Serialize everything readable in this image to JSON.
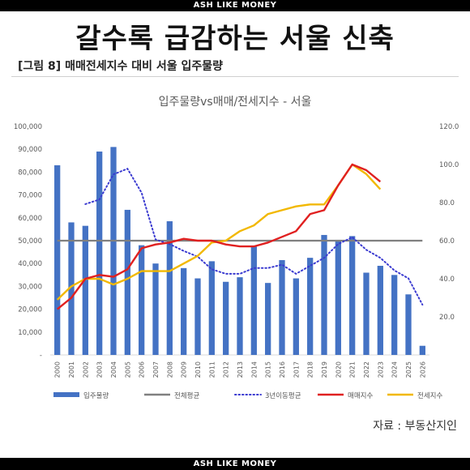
{
  "top_bar": "ASH LIKE MONEY",
  "bottom_bar": "ASH LIKE MONEY",
  "headline": "갈수록 급감하는 서울 신축",
  "subtitle_tag": "[그림 8]",
  "subtitle": "매매전세지수 대비 서울 입주물량",
  "source": "자료 : 부동산지인",
  "chart_data": {
    "type": "bar",
    "title": "입주물량vs매매/전세지수 - 서울",
    "categories": [
      "2000",
      "2001",
      "2002",
      "2003",
      "2004",
      "2005",
      "2006",
      "2007",
      "2008",
      "2009",
      "2010",
      "2011",
      "2012",
      "2013",
      "2014",
      "2015",
      "2016",
      "2017",
      "2018",
      "2019",
      "2020",
      "2021",
      "2022",
      "2023",
      "2024",
      "2025",
      "2026"
    ],
    "y_left": {
      "min": 0,
      "max": 100000,
      "ticks": [
        "-",
        "10,000",
        "20,000",
        "30,000",
        "40,000",
        "50,000",
        "60,000",
        "70,000",
        "80,000",
        "90,000",
        "100,000"
      ]
    },
    "y_right": {
      "min": 0,
      "max": 120,
      "ticks": [
        "20.0",
        "40.0",
        "60.0",
        "80.0",
        "100.0",
        "120.0"
      ]
    },
    "series": [
      {
        "name": "입주물량",
        "type": "bar",
        "axis": "left",
        "color": "#4472c4",
        "values": [
          83000,
          58000,
          56500,
          89000,
          91000,
          63500,
          48000,
          40000,
          58500,
          38000,
          33500,
          41000,
          32000,
          34000,
          47500,
          31500,
          41500,
          33500,
          42500,
          52500,
          50000,
          52000,
          36000,
          39000,
          35000,
          26500,
          4000
        ]
      },
      {
        "name": "전체평균",
        "type": "line",
        "axis": "left",
        "color": "#808080",
        "values": [
          50000,
          50000,
          50000,
          50000,
          50000,
          50000,
          50000,
          50000,
          50000,
          50000,
          50000,
          50000,
          50000,
          50000,
          50000,
          50000,
          50000,
          50000,
          50000,
          50000,
          50000,
          50000,
          50000,
          50000,
          50000,
          50000,
          50000
        ]
      },
      {
        "name": "3년이동평균",
        "type": "dotted",
        "axis": "left",
        "color": "#3a3ad0",
        "values": [
          null,
          null,
          66000,
          68000,
          79000,
          81500,
          71000,
          50500,
          48500,
          45500,
          43000,
          37500,
          35500,
          35500,
          38000,
          38000,
          39500,
          35500,
          39000,
          42500,
          48500,
          51500,
          46000,
          42500,
          37000,
          33500,
          22000
        ]
      },
      {
        "name": "매매지수",
        "type": "line",
        "axis": "right",
        "color": "#e02020",
        "values": [
          24,
          30,
          40,
          42,
          41,
          45,
          56,
          58,
          59,
          61,
          60,
          60,
          58,
          57,
          57,
          59,
          62,
          65,
          74,
          76,
          89,
          100,
          97,
          91,
          null,
          null,
          null
        ]
      },
      {
        "name": "전세지수",
        "type": "line",
        "axis": "right",
        "color": "#f2b800",
        "values": [
          29,
          36,
          40,
          40,
          37,
          40,
          44,
          44,
          44,
          48,
          52,
          59,
          60,
          65,
          68,
          74,
          76,
          78,
          79,
          79,
          89,
          100,
          95,
          87,
          null,
          null,
          null
        ]
      }
    ],
    "legend_position": "bottom"
  },
  "legend": [
    {
      "label": "입주물량",
      "icon": "bar-swatch"
    },
    {
      "label": "전체평균",
      "icon": "line-swatch"
    },
    {
      "label": "3년이동평균",
      "icon": "dotted-swatch"
    },
    {
      "label": "매매지수",
      "icon": "line-swatch"
    },
    {
      "label": "전세지수",
      "icon": "line-swatch"
    }
  ]
}
